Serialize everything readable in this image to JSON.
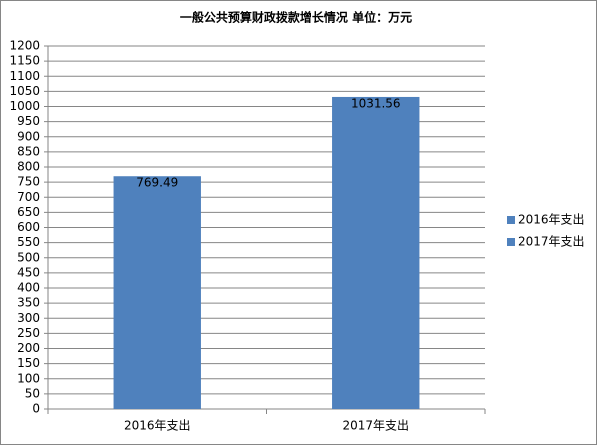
{
  "chart_data": {
    "type": "bar",
    "title": "一般公共预算财政拨款增长情况 单位：万元",
    "categories": [
      "2016年支出",
      "2017年支出"
    ],
    "values": [
      769.49,
      1031.56
    ],
    "color": "#4f81bd",
    "ylim": [
      0,
      1200
    ],
    "yticks": [
      0,
      50,
      100,
      150,
      200,
      250,
      300,
      350,
      400,
      450,
      500,
      550,
      600,
      650,
      700,
      750,
      800,
      850,
      900,
      950,
      1000,
      1050,
      1100,
      1150,
      1200
    ],
    "grid": true,
    "legend": "right",
    "data_labels": true
  }
}
